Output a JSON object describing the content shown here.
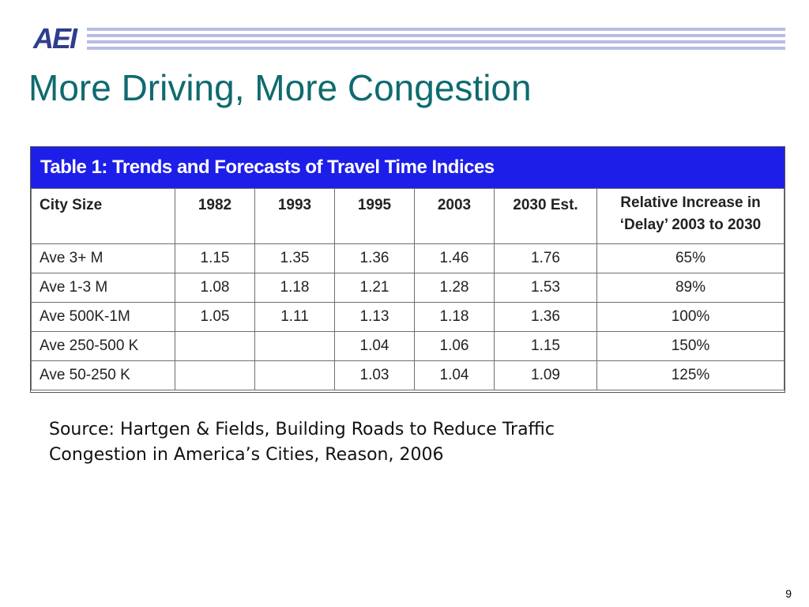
{
  "header": {
    "logo_text": "AEI",
    "title": "More Driving, More Congestion"
  },
  "table": {
    "title": "Table 1: Trends and Forecasts of Travel Time Indices",
    "columns": [
      "City Size",
      "1982",
      "1993",
      "1995",
      "2003",
      "2030 Est.",
      "Relative Increase in ‘Delay’ 2003 to 2030"
    ],
    "column_delay_line1": "Relative Increase in",
    "column_delay_line2": "‘Delay’ 2003 to 2030",
    "rows": [
      [
        "Ave 3+ M",
        "1.15",
        "1.35",
        "1.36",
        "1.46",
        "1.76",
        "65%"
      ],
      [
        "Ave 1-3 M",
        "1.08",
        "1.18",
        "1.21",
        "1.28",
        "1.53",
        "89%"
      ],
      [
        "Ave 500K-1M",
        "1.05",
        "1.11",
        "1.13",
        "1.18",
        "1.36",
        "100%"
      ],
      [
        "Ave 250-500 K",
        "",
        "",
        "1.04",
        "1.06",
        "1.15",
        "150%"
      ],
      [
        "Ave 50-250 K",
        "",
        "",
        "1.03",
        "1.04",
        "1.09",
        "125%"
      ]
    ]
  },
  "source": {
    "line1": "Source: Hartgen & Fields, Building Roads to Reduce Traffic",
    "line2": "Congestion in America’s Cities, Reason, 2006"
  },
  "footer": {
    "page_number": "9"
  },
  "colors": {
    "title": "#0e6b6f",
    "table_header_bar": "#1e1ee9",
    "logo": "#2e3e8c",
    "stripes": "#b7bde3"
  }
}
